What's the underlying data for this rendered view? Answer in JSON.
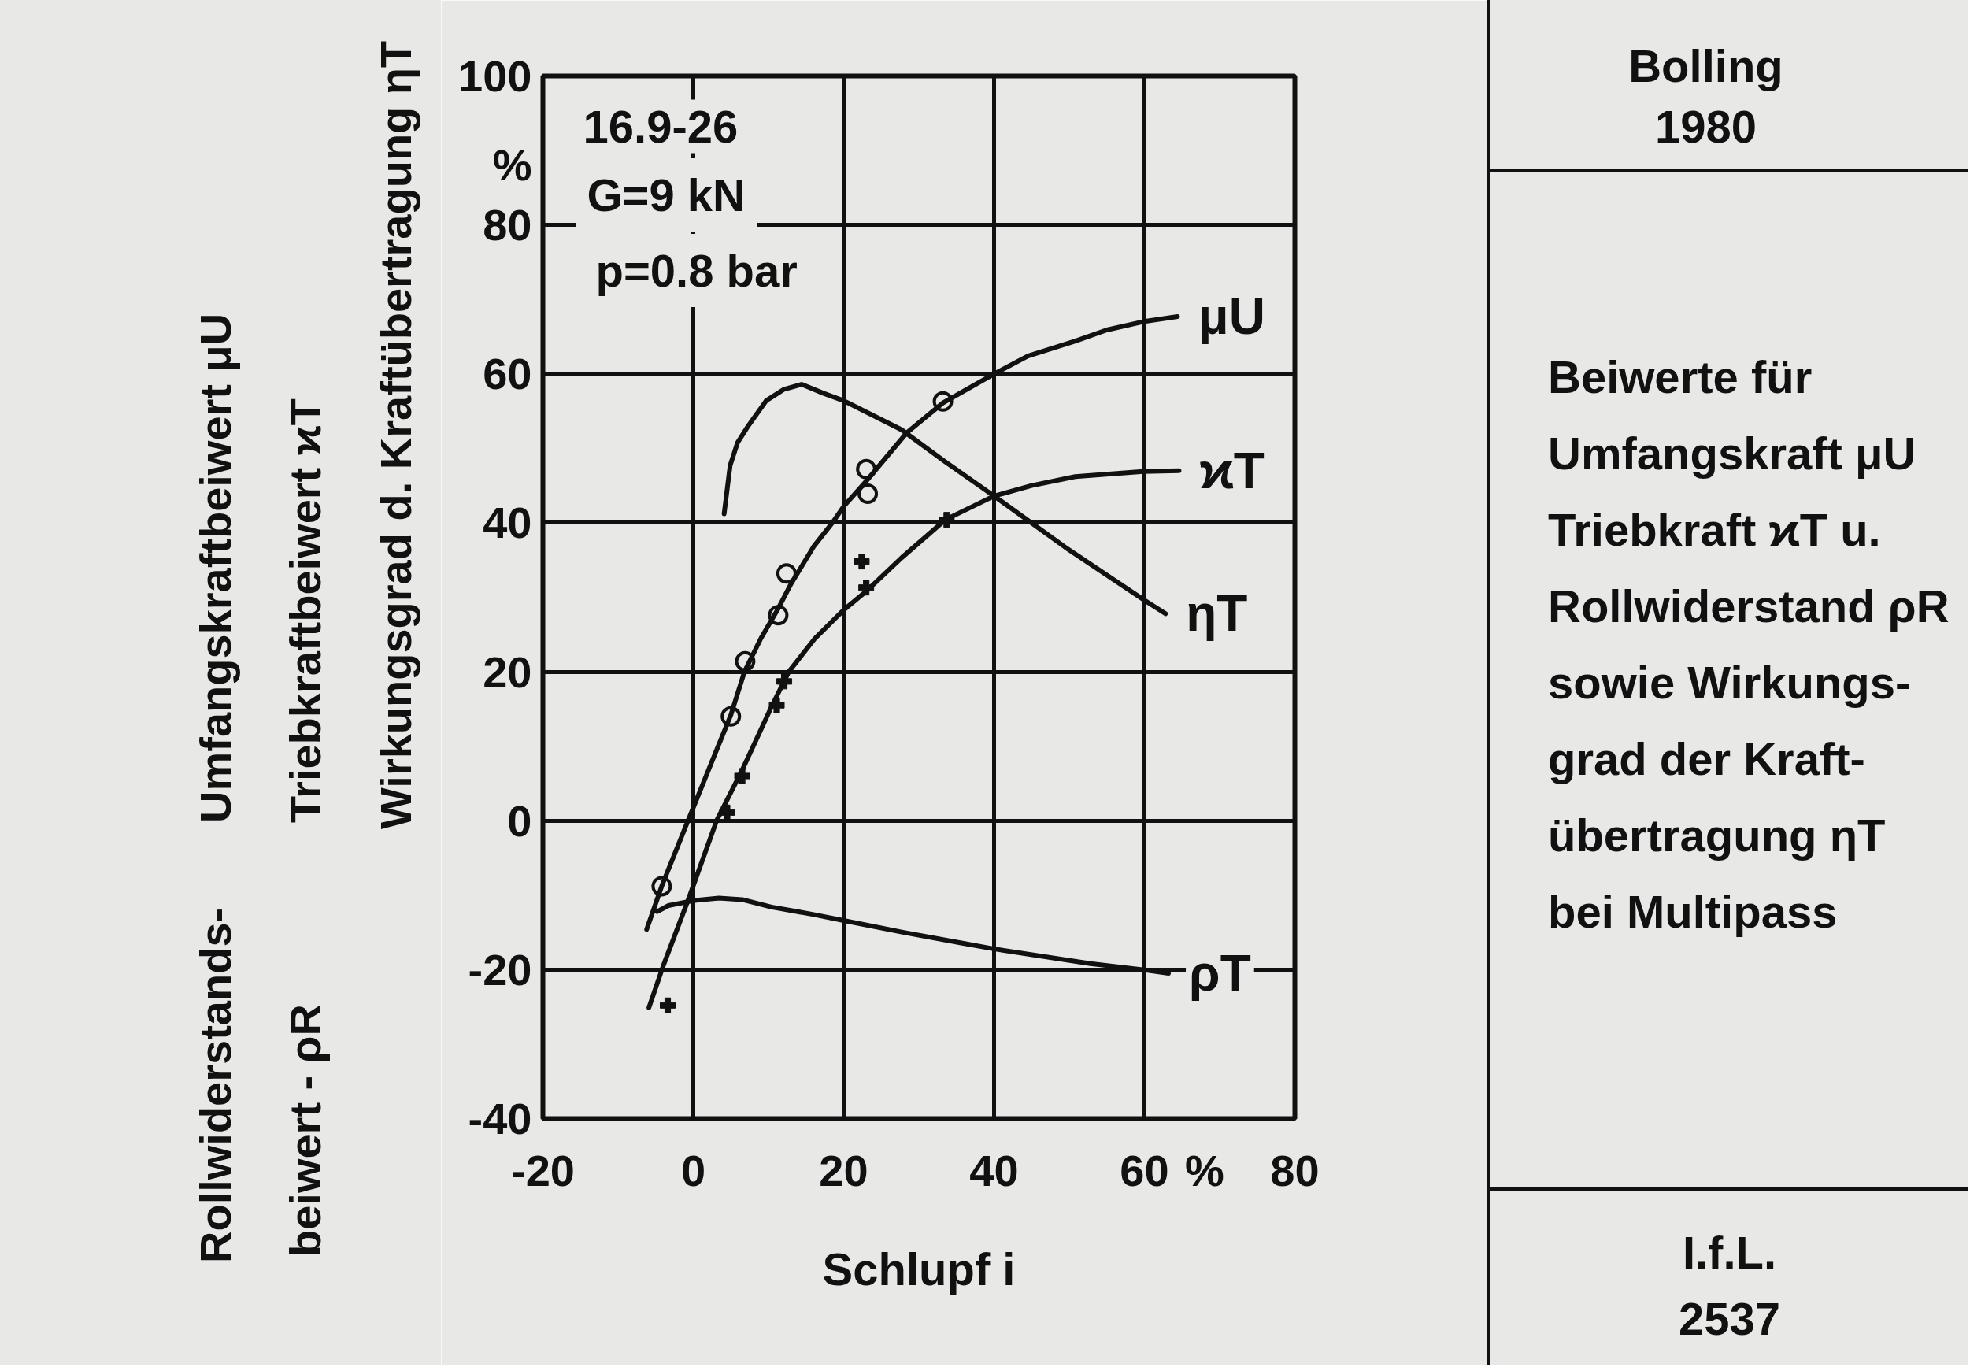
{
  "chart_data": {
    "type": "line",
    "title": "Beiwerte für\nUmfangskraft μU\nTriebkraft ϰT u.\nRollwiderstand ρR\nsowie Wirkungs-\ngrad der Kraft-\nübertragung ηT\nbei Multipass",
    "xlabel": "Schlupf i",
    "ylabel": "Umfangskraftbeiwert μU\nTriebkraftbeiwert ϰT\nWirkungsgrad d. Kraftübertragung ηT\nRollwiderstands-\nbeiwert - ρR",
    "annotations": [
      "16.9-26",
      "G=9 kN",
      "p=0.8 bar",
      "Bolling\n1980",
      "I.f.L.\n2537"
    ],
    "xlim": [
      -20,
      80
    ],
    "ylim": [
      -40,
      100
    ],
    "xticks": [
      -20,
      0,
      20,
      40,
      60,
      {
        "value": 68,
        "label": "%"
      },
      80
    ],
    "yticks": [
      -40,
      -20,
      0,
      20,
      40,
      60,
      80,
      {
        "value": 88,
        "label": "%"
      },
      100
    ],
    "grid": true,
    "series": [
      {
        "name": "μU",
        "color": "#111111",
        "x": [
          -6.2,
          -4.2,
          -0.7,
          2.5,
          5.0,
          6.8,
          9.0,
          11.3,
          13.0,
          16.0,
          18.5,
          20.0,
          23.0,
          28.4,
          33.2,
          40.0,
          44.5,
          50.8,
          55.0,
          59.8,
          64.4
        ],
        "values": [
          -14.6,
          -8.8,
          0.0,
          8.0,
          14.2,
          20.0,
          24.5,
          28.5,
          31.8,
          36.8,
          40.0,
          42.2,
          45.6,
          52.1,
          56.1,
          60.0,
          62.4,
          64.4,
          65.9,
          67.0,
          67.7
        ]
      },
      {
        "type": "scatter",
        "marker": "circle",
        "color": "#111111",
        "x": [
          -4.2,
          5.0,
          6.9,
          11.3,
          12.4,
          23.0,
          23.2,
          33.2
        ],
        "values": [
          -8.8,
          14.0,
          21.4,
          27.6,
          33.2,
          47.2,
          43.9,
          56.3
        ]
      },
      {
        "name": "ϰT",
        "color": "#111111",
        "x": [
          -5.9,
          -4.0,
          -0.7,
          3.1,
          6.5,
          10.4,
          12.7,
          16.2,
          20.0,
          23.0,
          27.7,
          33.5,
          40.0,
          45.0,
          50.8,
          59.8,
          64.6
        ],
        "values": [
          -25.1,
          -19.5,
          -10.7,
          0.0,
          6.8,
          15.3,
          20.0,
          24.5,
          28.3,
          30.8,
          35.3,
          40.4,
          43.6,
          45.0,
          46.2,
          46.9,
          47.0
        ]
      },
      {
        "type": "scatter",
        "marker": "cross",
        "color": "#111111",
        "x": [
          -3.4,
          4.5,
          6.5,
          11.1,
          12.1,
          22.4,
          23.0,
          33.7
        ],
        "values": [
          -24.8,
          1.1,
          6.0,
          15.5,
          18.7,
          34.8,
          31.3,
          40.4
        ]
      },
      {
        "name": "ηT",
        "color": "#111111",
        "x": [
          4.1,
          4.9,
          5.9,
          7.3,
          9.7,
          12.0,
          14.4,
          17.3,
          20.0,
          27.7,
          33.5,
          40.0,
          49.5,
          60.0,
          62.8
        ],
        "values": [
          41.2,
          47.7,
          50.8,
          53.0,
          56.4,
          57.9,
          58.6,
          57.4,
          56.4,
          52.5,
          48.2,
          43.6,
          36.7,
          29.6,
          27.8
        ]
      },
      {
        "name": "ρT",
        "color": "#111111",
        "x": [
          -4.8,
          -3.3,
          0.2,
          3.4,
          6.5,
          10.4,
          16.0,
          20.0,
          28.0,
          35.5,
          39.9,
          52.8,
          59.7,
          63.2
        ],
        "values": [
          -12.2,
          -11.4,
          -10.7,
          -10.4,
          -10.6,
          -11.6,
          -12.6,
          -13.4,
          -15.0,
          -16.4,
          -17.2,
          -19.2,
          -20.0,
          -20.5
        ]
      }
    ]
  }
}
